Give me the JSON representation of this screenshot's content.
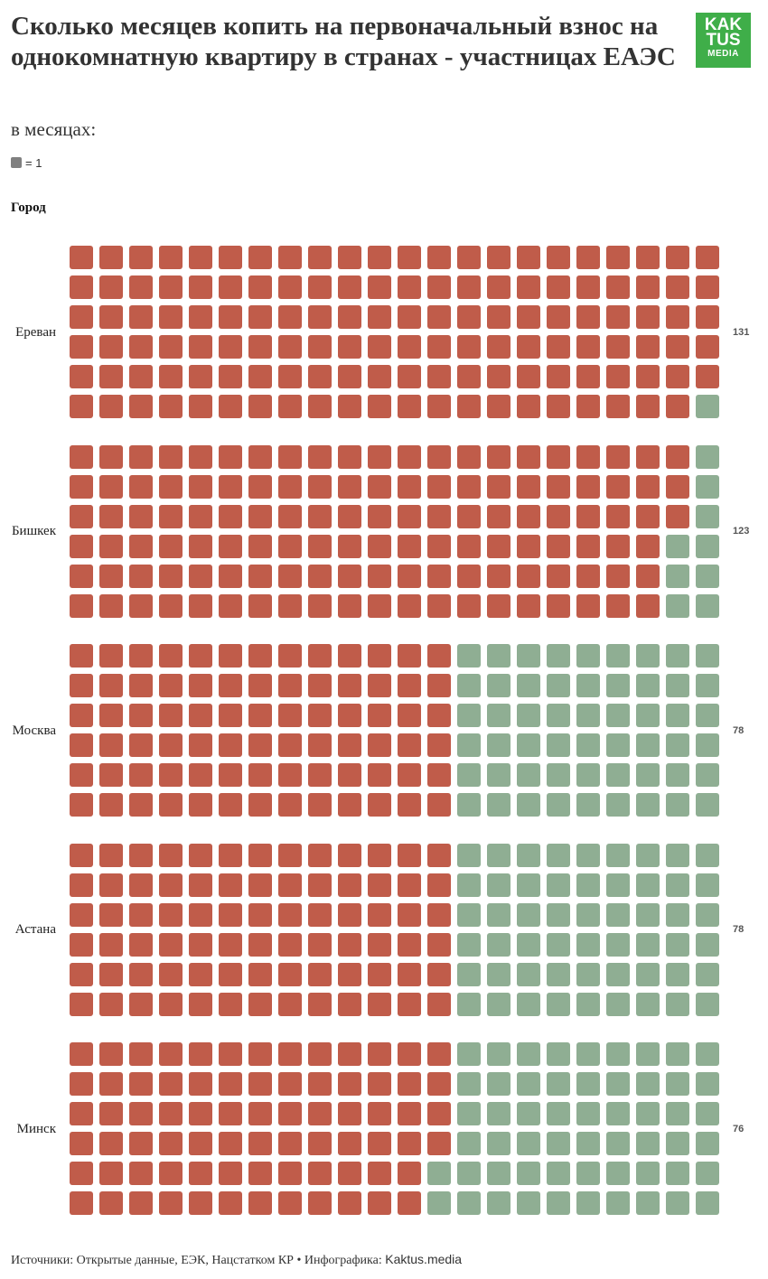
{
  "title": "Сколько месяцев копить на первоначальный взнос на однокомнатную квартиру в странах - участницах ЕАЭС",
  "subtitle": "в месяцах:",
  "legend": {
    "unit_label": "= 1"
  },
  "column_header": "Город",
  "logo": {
    "line1": "KAK",
    "line2": "TUS",
    "line3": "MEDIA",
    "color": "#3fae49"
  },
  "footer": {
    "text": "Источники: Открытые данные, ЕЭК, Нацстатком КР • Инфографика:",
    "brand": "Kaktus.media"
  },
  "colors": {
    "filled": "#c05c4a",
    "empty": "#8fae93",
    "legend": "#808080"
  },
  "chart_data": {
    "type": "waffle",
    "unit": "месяц",
    "grid": {
      "rows": 6,
      "columns": 22,
      "fill_order": "column-major, left to right, top to bottom"
    },
    "categories": [
      "Ереван",
      "Бишкек",
      "Москва",
      "Астана",
      "Минск"
    ],
    "values": [
      131,
      123,
      78,
      78,
      76
    ],
    "value_labels": [
      "131",
      "123",
      "78",
      "78",
      "76"
    ]
  }
}
